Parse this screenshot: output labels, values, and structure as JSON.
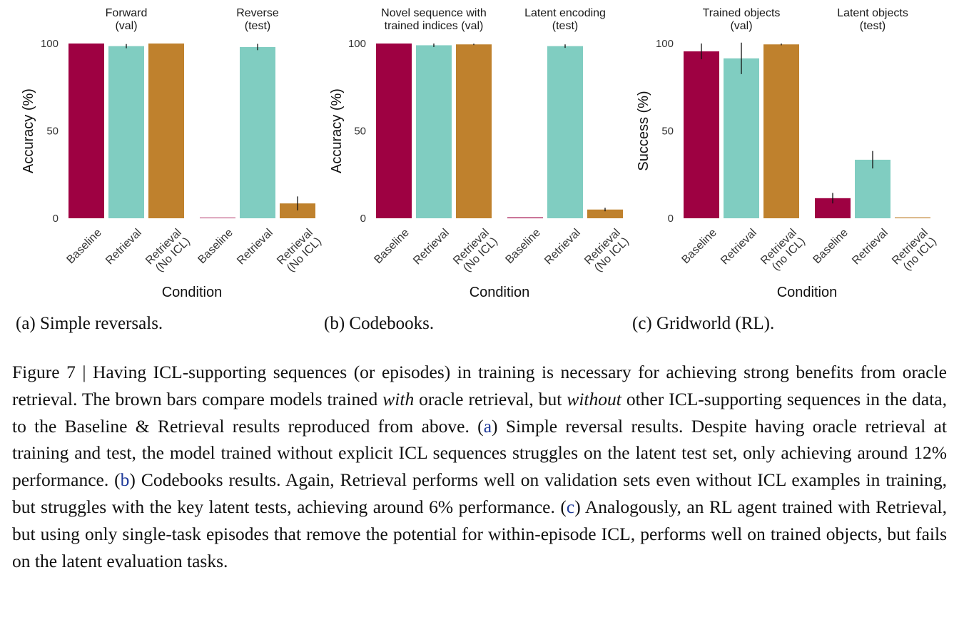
{
  "colors": {
    "baseline": "#9e0142",
    "retrieval": "#80cdc1",
    "no_icl": "#bf812d",
    "errorbar": "#111111",
    "ref_link": "#1f3a9a"
  },
  "chart_data": [
    {
      "type": "bar",
      "ylabel": "Accuracy (%)",
      "xlabel": "Condition",
      "ylim": [
        0,
        100
      ],
      "yticks": [
        0,
        50,
        100
      ],
      "grid": false,
      "legend": "none",
      "facets": [
        {
          "title_lines": [
            "Forward",
            "(val)"
          ],
          "categories": [
            [
              "Baseline"
            ],
            [
              "Retrieval"
            ],
            [
              "Retrieval",
              "(No ICL)"
            ]
          ],
          "values": [
            100,
            98.5,
            100
          ],
          "errors": [
            0,
            1.2,
            0
          ]
        },
        {
          "title_lines": [
            "Reverse",
            "(test)"
          ],
          "categories": [
            [
              "Baseline"
            ],
            [
              "Retrieval"
            ],
            [
              "Retrieval",
              "(No ICL)"
            ]
          ],
          "values": [
            0,
            98,
            8.5
          ],
          "errors": [
            0,
            1.8,
            4
          ]
        }
      ],
      "caption": "(a) Simple reversals."
    },
    {
      "type": "bar",
      "ylabel": "Accuracy (%)",
      "xlabel": "Condition",
      "ylim": [
        0,
        100
      ],
      "yticks": [
        0,
        50,
        100
      ],
      "grid": false,
      "legend": "none",
      "facets": [
        {
          "title_lines": [
            "Novel sequence with",
            "trained indices (val)"
          ],
          "categories": [
            [
              "Baseline"
            ],
            [
              "Retrieval"
            ],
            [
              "Retrieval",
              "(No ICL)"
            ]
          ],
          "values": [
            100,
            99,
            99.5
          ],
          "errors": [
            0,
            1,
            0.4
          ]
        },
        {
          "title_lines": [
            "Latent encoding",
            "(test)"
          ],
          "categories": [
            [
              "Baseline"
            ],
            [
              "Retrieval"
            ],
            [
              "Retrieval",
              "(No ICL)"
            ]
          ],
          "values": [
            0.5,
            98.5,
            5
          ],
          "errors": [
            0,
            1,
            1
          ]
        }
      ],
      "caption": "(b) Codebooks."
    },
    {
      "type": "bar",
      "ylabel": "Success (%)",
      "xlabel": "Condition",
      "ylim": [
        0,
        100
      ],
      "yticks": [
        0,
        50,
        100
      ],
      "grid": false,
      "legend": "none",
      "facets": [
        {
          "title_lines": [
            "Trained objects",
            "(val)"
          ],
          "categories": [
            [
              "Baseline"
            ],
            [
              "Retrieval"
            ],
            [
              "Retrieval",
              "(no ICL)"
            ]
          ],
          "values": [
            95.5,
            91.5,
            99.5
          ],
          "errors": [
            4.5,
            9,
            0.5
          ]
        },
        {
          "title_lines": [
            "Latent objects",
            "(test)"
          ],
          "categories": [
            [
              "Baseline"
            ],
            [
              "Retrieval"
            ],
            [
              "Retrieval",
              "(no ICL)"
            ]
          ],
          "values": [
            11.5,
            33.5,
            0.5
          ],
          "errors": [
            3,
            5,
            0
          ]
        }
      ],
      "caption": "(c) Gridworld (RL)."
    }
  ],
  "figure_caption": {
    "label": "Figure 7 | ",
    "s1": "Having ICL-supporting sequences (or episodes) in training is necessary for achieving strong benefits from oracle retrieval.  The brown bars compare models trained ",
    "s1_em": "with",
    "s2": " oracle retrieval, but ",
    "s2_em": "without",
    "s3": " other ICL-supporting sequences in the data, to the Baseline & Retrieval results reproduced from above. (",
    "ref_a": "a",
    "s4": ") Simple reversal results. Despite having oracle retrieval at training and test, the model trained without explicit ICL sequences struggles on the latent test set, only achieving around 12% performance. (",
    "ref_b": "b",
    "s5": ") Codebooks results. Again, Retrieval performs well on validation sets even without ICL examples in training, but struggles with the key latent tests, achieving around 6% performance. (",
    "ref_c": "c",
    "s6": ") Analogously, an RL agent trained with Retrieval, but using only single-task episodes that remove the potential for within-episode ICL, performs well on trained objects, but fails on the latent evaluation tasks."
  }
}
